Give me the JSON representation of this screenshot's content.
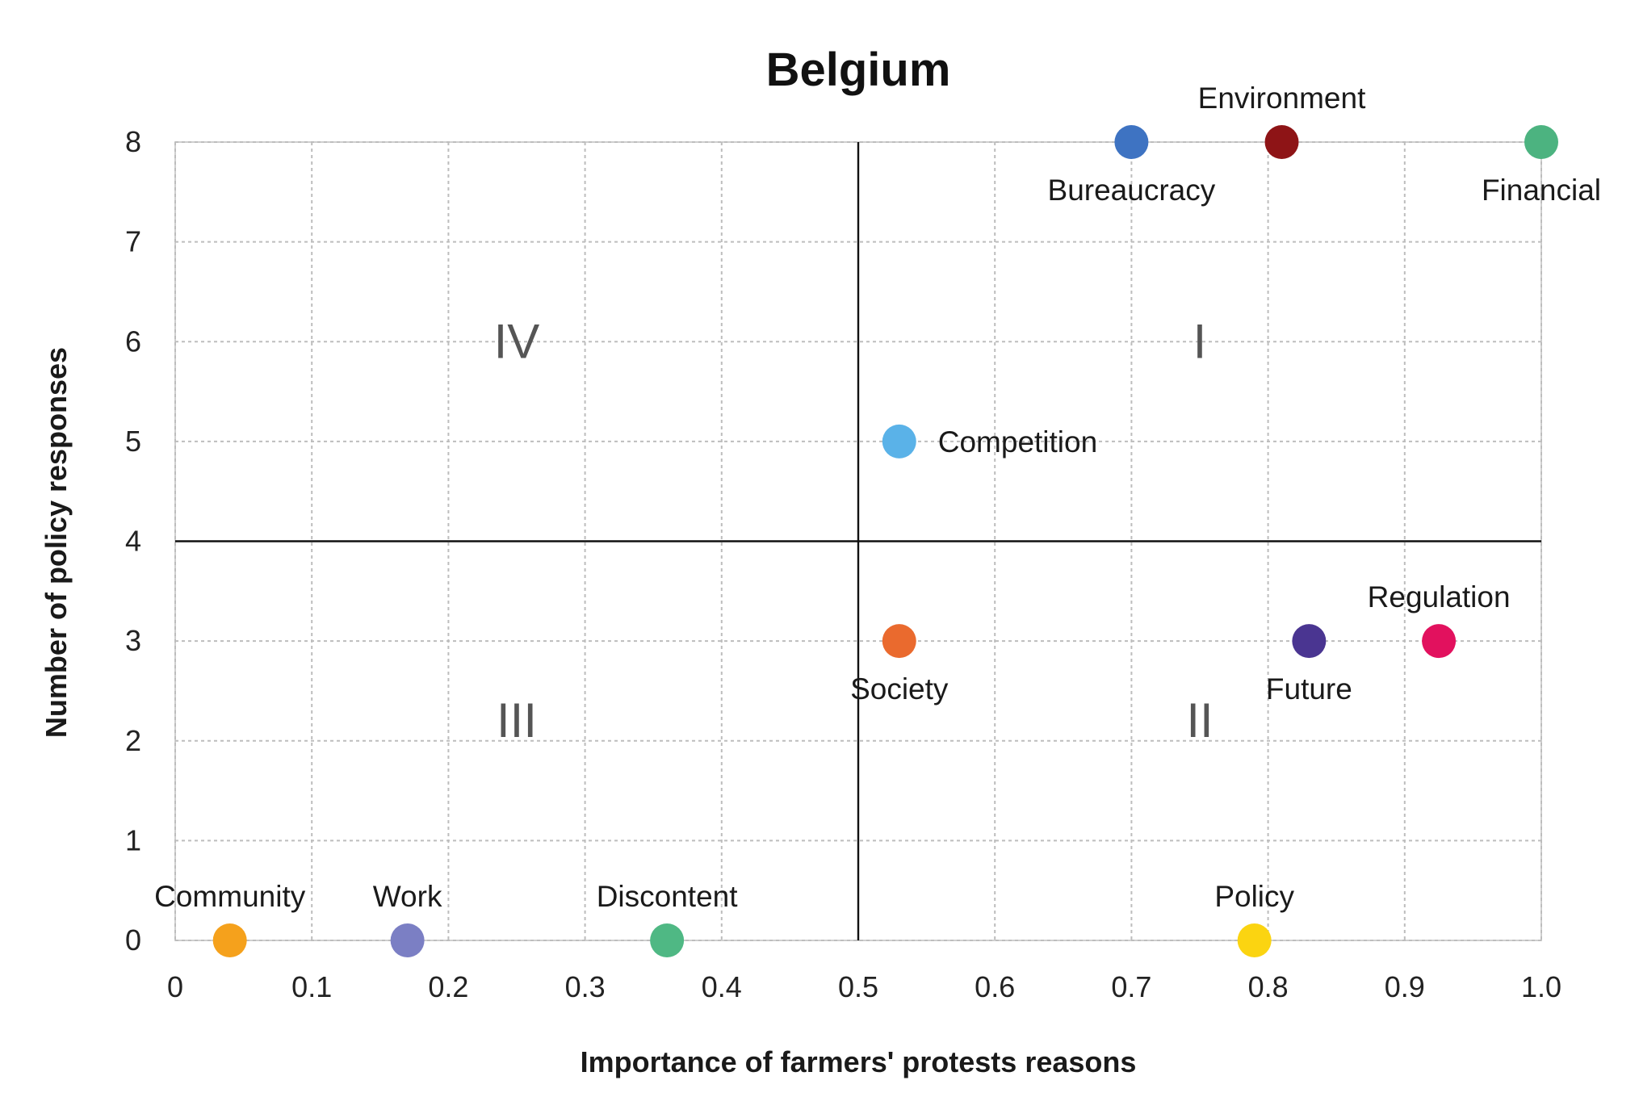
{
  "chart_data": {
    "type": "scatter",
    "title": "Belgium",
    "xlabel": "Importance of farmers' protests reasons",
    "ylabel": "Number of policy responses",
    "xlim": [
      0,
      1.0
    ],
    "ylim": [
      0,
      8
    ],
    "x_ticks": [
      "0",
      "0.1",
      "0.2",
      "0.3",
      "0.4",
      "0.5",
      "0.6",
      "0.7",
      "0.8",
      "0.9",
      "1.0"
    ],
    "y_ticks": [
      "0",
      "1",
      "2",
      "3",
      "4",
      "5",
      "6",
      "7",
      "8"
    ],
    "grid": true,
    "dividers": {
      "x": 0.5,
      "y": 4
    },
    "quadrants": [
      {
        "label": "I",
        "x": 0.75,
        "y": 6
      },
      {
        "label": "II",
        "x": 0.75,
        "y": 2.2
      },
      {
        "label": "III",
        "x": 0.25,
        "y": 2.2
      },
      {
        "label": "IV",
        "x": 0.25,
        "y": 6
      }
    ],
    "points": [
      {
        "label": "Community",
        "x": 0.04,
        "y": 0,
        "color": "#f5a11c",
        "label_pos": "above"
      },
      {
        "label": "Work",
        "x": 0.17,
        "y": 0,
        "color": "#7b7fc4",
        "label_pos": "above"
      },
      {
        "label": "Discontent",
        "x": 0.36,
        "y": 0,
        "color": "#4fb884",
        "label_pos": "above"
      },
      {
        "label": "Policy",
        "x": 0.79,
        "y": 0,
        "color": "#fbd411",
        "label_pos": "above"
      },
      {
        "label": "Society",
        "x": 0.53,
        "y": 3,
        "color": "#ea6a2e",
        "label_pos": "below"
      },
      {
        "label": "Future",
        "x": 0.83,
        "y": 3,
        "color": "#4a3591",
        "label_pos": "below"
      },
      {
        "label": "Regulation",
        "x": 0.925,
        "y": 3,
        "color": "#e2115e",
        "label_pos": "above"
      },
      {
        "label": "Competition",
        "x": 0.53,
        "y": 5,
        "color": "#5ab2e8",
        "label_pos": "right"
      },
      {
        "label": "Bureaucracy",
        "x": 0.7,
        "y": 8,
        "color": "#3e73c2",
        "label_pos": "below"
      },
      {
        "label": "Environment",
        "x": 0.81,
        "y": 8,
        "color": "#8e1416",
        "label_pos": "above"
      },
      {
        "label": "Financial",
        "x": 1.0,
        "y": 8,
        "color": "#4cb380",
        "label_pos": "below"
      }
    ]
  }
}
